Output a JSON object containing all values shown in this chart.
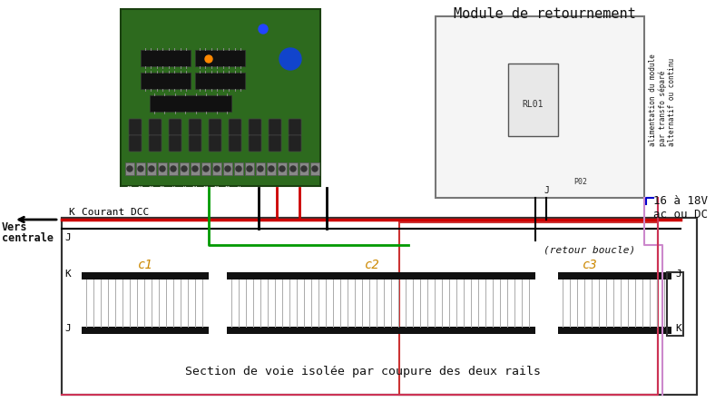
{
  "title": "Module de retournement",
  "subtitle_left_1": "Vers",
  "subtitle_left_2": "centrale",
  "dcc_label": "Courant DCC",
  "voltage_label": "16 à 18V\nac ou DC",
  "retour_label": "(retour boucle)",
  "section_label": "Section de voie isolée par coupure des deux rails",
  "k_label": "K",
  "j_label": "J",
  "c1_label": "c1",
  "c2_label": "c2",
  "c3_label": "c3",
  "bg_color": "#ffffff",
  "rail_color": "#000000",
  "tie_color": "#aaaaaa",
  "red_wire": "#cc0000",
  "green_wire": "#009900",
  "dark_red_wire": "#8b0000",
  "purple_wire": "#cc88cc",
  "black_wire": "#000000",
  "pcb_green": "#2d6a1e",
  "label_color": "#cc8800",
  "border_color": "#888888"
}
